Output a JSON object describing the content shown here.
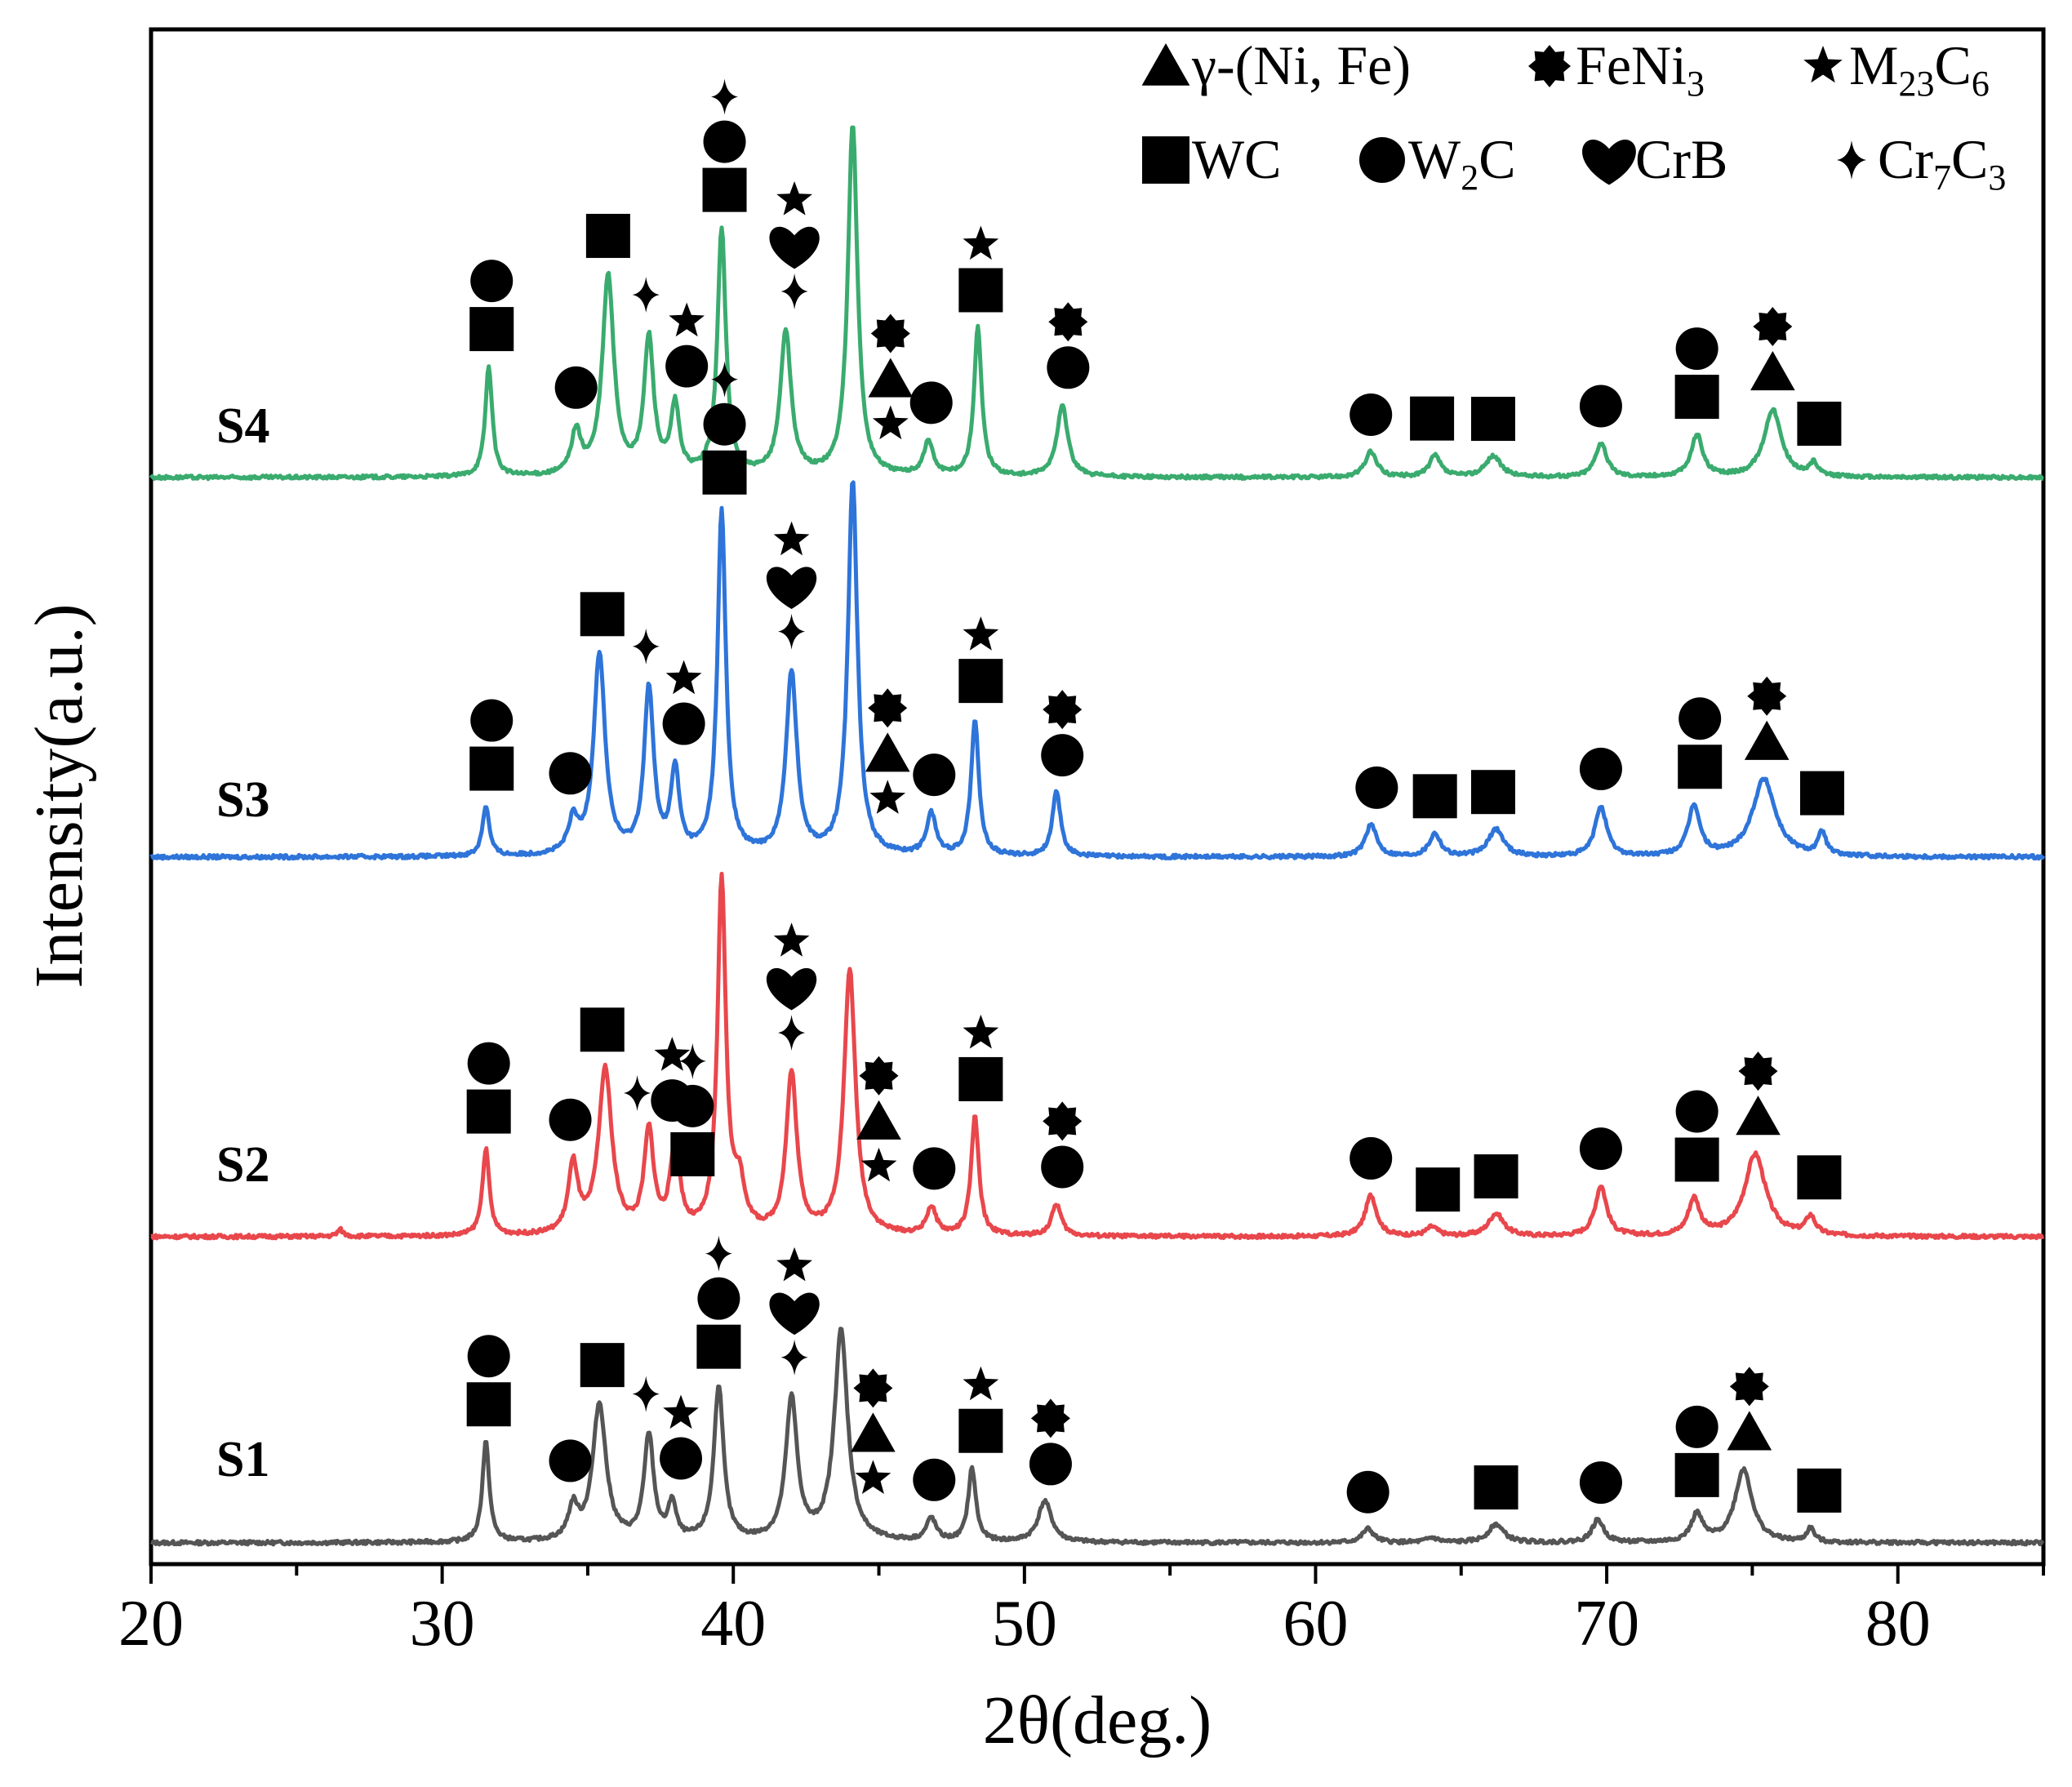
{
  "chart_data": {
    "type": "line",
    "xlabel": "2θ(deg.)",
    "ylabel": "Intensity(a.u.)",
    "xlim": [
      20,
      85
    ],
    "x_ticks": [
      "20",
      "30",
      "40",
      "50",
      "60",
      "70",
      "80"
    ],
    "y_ticks_shown": false,
    "legend_position": "top-right",
    "legend": [
      {
        "symbol": "triangle",
        "text": "γ-(Ni, Fe)"
      },
      {
        "symbol": "starburst",
        "text": "FeNi",
        "sub": "3"
      },
      {
        "symbol": "star",
        "text": "M",
        "sub": "23",
        "text2": "C",
        "sub2": "6"
      },
      {
        "symbol": "square",
        "text": "WC"
      },
      {
        "symbol": "circle",
        "text": "W",
        "sub": "2",
        "text2": "C"
      },
      {
        "symbol": "heart",
        "text": "CrB"
      },
      {
        "symbol": "cross",
        "text": "Cr",
        "sub": "7",
        "text2": "C",
        "sub2": "3"
      }
    ],
    "series": [
      {
        "name": "S1",
        "color": "#555555",
        "baseline": 0,
        "peaks": [
          {
            "x": 31.5,
            "h": 0.22,
            "w": 0.18
          },
          {
            "x": 34.5,
            "h": 0.07,
            "w": 0.25
          },
          {
            "x": 35.4,
            "h": 0.3,
            "w": 0.35
          },
          {
            "x": 37.1,
            "h": 0.23,
            "w": 0.25
          },
          {
            "x": 37.9,
            "h": 0.08,
            "w": 0.2
          },
          {
            "x": 39.5,
            "h": 0.34,
            "w": 0.25
          },
          {
            "x": 42.0,
            "h": 0.31,
            "w": 0.3
          },
          {
            "x": 43.7,
            "h": 0.46,
            "w": 0.35
          },
          {
            "x": 46.8,
            "h": 0.05,
            "w": 0.25
          },
          {
            "x": 48.2,
            "h": 0.16,
            "w": 0.2
          },
          {
            "x": 50.7,
            "h": 0.09,
            "w": 0.35
          },
          {
            "x": 61.8,
            "h": 0.03,
            "w": 0.3
          },
          {
            "x": 64.0,
            "h": 0.01,
            "w": 0.3
          },
          {
            "x": 66.2,
            "h": 0.04,
            "w": 0.4
          },
          {
            "x": 69.7,
            "h": 0.05,
            "w": 0.3
          },
          {
            "x": 73.1,
            "h": 0.06,
            "w": 0.3
          },
          {
            "x": 74.7,
            "h": 0.16,
            "w": 0.45
          },
          {
            "x": 77.0,
            "h": 0.03,
            "w": 0.2
          }
        ]
      },
      {
        "name": "S2",
        "color": "#e8474c",
        "baseline": 0,
        "peaks": [
          {
            "x": 31.5,
            "h": 0.19,
            "w": 0.18
          },
          {
            "x": 34.5,
            "h": 0.15,
            "w": 0.25
          },
          {
            "x": 35.6,
            "h": 0.36,
            "w": 0.35
          },
          {
            "x": 37.1,
            "h": 0.22,
            "w": 0.25
          },
          {
            "x": 38.0,
            "h": 0.19,
            "w": 0.25
          },
          {
            "x": 39.6,
            "h": 0.77,
            "w": 0.22
          },
          {
            "x": 40.2,
            "h": 0.1,
            "w": 0.3
          },
          {
            "x": 42.0,
            "h": 0.35,
            "w": 0.28
          },
          {
            "x": 44.0,
            "h": 0.58,
            "w": 0.3
          },
          {
            "x": 46.8,
            "h": 0.06,
            "w": 0.25
          },
          {
            "x": 48.3,
            "h": 0.26,
            "w": 0.2
          },
          {
            "x": 51.1,
            "h": 0.07,
            "w": 0.25
          },
          {
            "x": 26.5,
            "h": 0.015,
            "w": 0.15
          },
          {
            "x": 61.9,
            "h": 0.09,
            "w": 0.3
          },
          {
            "x": 64.0,
            "h": 0.02,
            "w": 0.3
          },
          {
            "x": 66.2,
            "h": 0.05,
            "w": 0.4
          },
          {
            "x": 69.8,
            "h": 0.11,
            "w": 0.3
          },
          {
            "x": 73.0,
            "h": 0.08,
            "w": 0.3
          },
          {
            "x": 75.1,
            "h": 0.18,
            "w": 0.55
          },
          {
            "x": 77.0,
            "h": 0.04,
            "w": 0.25
          }
        ]
      },
      {
        "name": "S3",
        "color": "#2e74d9",
        "baseline": 0,
        "peaks": [
          {
            "x": 31.5,
            "h": 0.11,
            "w": 0.18
          },
          {
            "x": 34.5,
            "h": 0.07,
            "w": 0.25
          },
          {
            "x": 35.4,
            "h": 0.44,
            "w": 0.3
          },
          {
            "x": 37.1,
            "h": 0.36,
            "w": 0.25
          },
          {
            "x": 38.0,
            "h": 0.18,
            "w": 0.22
          },
          {
            "x": 39.6,
            "h": 0.75,
            "w": 0.22
          },
          {
            "x": 42.0,
            "h": 0.4,
            "w": 0.28
          },
          {
            "x": 44.1,
            "h": 0.82,
            "w": 0.25
          },
          {
            "x": 46.8,
            "h": 0.09,
            "w": 0.25
          },
          {
            "x": 48.3,
            "h": 0.3,
            "w": 0.2
          },
          {
            "x": 51.1,
            "h": 0.14,
            "w": 0.22
          },
          {
            "x": 61.9,
            "h": 0.07,
            "w": 0.3
          },
          {
            "x": 64.1,
            "h": 0.05,
            "w": 0.3
          },
          {
            "x": 66.2,
            "h": 0.06,
            "w": 0.4
          },
          {
            "x": 69.8,
            "h": 0.11,
            "w": 0.3
          },
          {
            "x": 73.0,
            "h": 0.11,
            "w": 0.3
          },
          {
            "x": 75.4,
            "h": 0.17,
            "w": 0.6
          },
          {
            "x": 77.4,
            "h": 0.05,
            "w": 0.2
          }
        ]
      },
      {
        "name": "S4",
        "color": "#3aab6e",
        "baseline": 0,
        "peaks": [
          {
            "x": 31.6,
            "h": 0.26,
            "w": 0.18
          },
          {
            "x": 34.6,
            "h": 0.1,
            "w": 0.25
          },
          {
            "x": 35.7,
            "h": 0.47,
            "w": 0.3
          },
          {
            "x": 37.1,
            "h": 0.32,
            "w": 0.25
          },
          {
            "x": 38.0,
            "h": 0.16,
            "w": 0.22
          },
          {
            "x": 39.6,
            "h": 0.58,
            "w": 0.22
          },
          {
            "x": 41.8,
            "h": 0.34,
            "w": 0.28
          },
          {
            "x": 44.1,
            "h": 0.83,
            "w": 0.25
          },
          {
            "x": 46.7,
            "h": 0.08,
            "w": 0.25
          },
          {
            "x": 48.4,
            "h": 0.35,
            "w": 0.2
          },
          {
            "x": 51.3,
            "h": 0.17,
            "w": 0.28
          },
          {
            "x": 61.9,
            "h": 0.06,
            "w": 0.3
          },
          {
            "x": 64.1,
            "h": 0.05,
            "w": 0.3
          },
          {
            "x": 66.1,
            "h": 0.05,
            "w": 0.4
          },
          {
            "x": 69.8,
            "h": 0.08,
            "w": 0.3
          },
          {
            "x": 73.1,
            "h": 0.1,
            "w": 0.3
          },
          {
            "x": 75.7,
            "h": 0.16,
            "w": 0.45
          },
          {
            "x": 77.1,
            "h": 0.03,
            "w": 0.2
          }
        ]
      }
    ],
    "peak_markers": [
      {
        "sample": "S1",
        "x": 31.6,
        "symbols": [
          "square",
          "circle"
        ]
      },
      {
        "sample": "S1",
        "x": 34.4,
        "symbols": [
          "circle"
        ]
      },
      {
        "sample": "S1",
        "x": 35.5,
        "symbols": [
          "square"
        ]
      },
      {
        "sample": "S1",
        "x": 37.0,
        "symbols": [
          "cross"
        ]
      },
      {
        "sample": "S1",
        "x": 38.2,
        "symbols": [
          "circle",
          "star"
        ]
      },
      {
        "sample": "S1",
        "x": 39.5,
        "symbols": [
          "square",
          "circle",
          "cross"
        ]
      },
      {
        "sample": "S1",
        "x": 42.1,
        "symbols": [
          "cross",
          "heart",
          "star"
        ]
      },
      {
        "sample": "S1",
        "x": 44.8,
        "symbols": [
          "star",
          "triangle",
          "starburst"
        ]
      },
      {
        "sample": "S1",
        "x": 46.9,
        "symbols": [
          "circle"
        ]
      },
      {
        "sample": "S1",
        "x": 48.5,
        "symbols": [
          "square",
          "star"
        ]
      },
      {
        "sample": "S1",
        "x": 50.9,
        "symbols": [
          "circle",
          "starburst"
        ]
      },
      {
        "sample": "S1",
        "x": 61.8,
        "symbols": [
          "circle"
        ]
      },
      {
        "sample": "S1",
        "x": 66.2,
        "symbols": [
          "square"
        ]
      },
      {
        "sample": "S1",
        "x": 69.8,
        "symbols": [
          "circle"
        ]
      },
      {
        "sample": "S1",
        "x": 73.1,
        "symbols": [
          "square",
          "circle"
        ]
      },
      {
        "sample": "S1",
        "x": 74.9,
        "symbols": [
          "triangle",
          "starburst"
        ]
      },
      {
        "sample": "S1",
        "x": 77.3,
        "symbols": [
          "square"
        ]
      },
      {
        "sample": "S2",
        "x": 31.6,
        "symbols": [
          "square",
          "circle"
        ]
      },
      {
        "sample": "S2",
        "x": 34.4,
        "symbols": [
          "circle"
        ]
      },
      {
        "sample": "S2",
        "x": 35.5,
        "symbols": [
          "square"
        ]
      },
      {
        "sample": "S2",
        "x": 36.7,
        "symbols": [
          "cross"
        ]
      },
      {
        "sample": "S2",
        "x": 37.9,
        "symbols": [
          "circle",
          "star"
        ]
      },
      {
        "sample": "S2",
        "x": 38.6,
        "symbols": [
          "square",
          "circle",
          "cross"
        ]
      },
      {
        "sample": "S2",
        "x": 42.0,
        "symbols": [
          "cross",
          "heart",
          "star"
        ]
      },
      {
        "sample": "S2",
        "x": 45.0,
        "symbols": [
          "star",
          "triangle",
          "starburst"
        ]
      },
      {
        "sample": "S2",
        "x": 46.9,
        "symbols": [
          "circle"
        ]
      },
      {
        "sample": "S2",
        "x": 48.5,
        "symbols": [
          "square",
          "star"
        ]
      },
      {
        "sample": "S2",
        "x": 51.3,
        "symbols": [
          "circle",
          "starburst"
        ]
      },
      {
        "sample": "S2",
        "x": 61.9,
        "symbols": [
          "circle"
        ]
      },
      {
        "sample": "S2",
        "x": 64.2,
        "symbols": [
          "square"
        ]
      },
      {
        "sample": "S2",
        "x": 66.2,
        "symbols": [
          "square"
        ]
      },
      {
        "sample": "S2",
        "x": 69.8,
        "symbols": [
          "circle"
        ]
      },
      {
        "sample": "S2",
        "x": 73.1,
        "symbols": [
          "square",
          "circle"
        ]
      },
      {
        "sample": "S2",
        "x": 75.2,
        "symbols": [
          "triangle",
          "starburst"
        ]
      },
      {
        "sample": "S2",
        "x": 77.3,
        "symbols": [
          "square"
        ]
      },
      {
        "sample": "S3",
        "x": 31.7,
        "symbols": [
          "square",
          "circle"
        ]
      },
      {
        "sample": "S3",
        "x": 34.4,
        "symbols": [
          "circle"
        ]
      },
      {
        "sample": "S3",
        "x": 35.5,
        "symbols": [
          "square"
        ]
      },
      {
        "sample": "S3",
        "x": 37.0,
        "symbols": [
          "cross"
        ]
      },
      {
        "sample": "S3",
        "x": 38.3,
        "symbols": [
          "circle",
          "star"
        ]
      },
      {
        "sample": "S3",
        "x": 39.7,
        "symbols": [
          "square",
          "circle",
          "cross"
        ]
      },
      {
        "sample": "S3",
        "x": 42.0,
        "symbols": [
          "cross",
          "heart",
          "star"
        ]
      },
      {
        "sample": "S3",
        "x": 45.3,
        "symbols": [
          "star",
          "triangle",
          "starburst"
        ]
      },
      {
        "sample": "S3",
        "x": 46.9,
        "symbols": [
          "circle"
        ]
      },
      {
        "sample": "S3",
        "x": 48.5,
        "symbols": [
          "square",
          "star"
        ]
      },
      {
        "sample": "S3",
        "x": 51.3,
        "symbols": [
          "circle",
          "starburst"
        ]
      },
      {
        "sample": "S3",
        "x": 62.1,
        "symbols": [
          "circle"
        ]
      },
      {
        "sample": "S3",
        "x": 64.1,
        "symbols": [
          "square"
        ]
      },
      {
        "sample": "S3",
        "x": 66.1,
        "symbols": [
          "square"
        ]
      },
      {
        "sample": "S3",
        "x": 69.8,
        "symbols": [
          "circle"
        ]
      },
      {
        "sample": "S3",
        "x": 73.2,
        "symbols": [
          "square",
          "circle"
        ]
      },
      {
        "sample": "S3",
        "x": 75.5,
        "symbols": [
          "triangle",
          "starburst"
        ]
      },
      {
        "sample": "S3",
        "x": 77.4,
        "symbols": [
          "square"
        ]
      },
      {
        "sample": "S4",
        "x": 31.7,
        "symbols": [
          "square",
          "circle"
        ]
      },
      {
        "sample": "S4",
        "x": 34.6,
        "symbols": [
          "circle"
        ]
      },
      {
        "sample": "S4",
        "x": 35.7,
        "symbols": [
          "square"
        ]
      },
      {
        "sample": "S4",
        "x": 37.0,
        "symbols": [
          "cross"
        ]
      },
      {
        "sample": "S4",
        "x": 38.4,
        "symbols": [
          "circle",
          "star"
        ]
      },
      {
        "sample": "S4",
        "x": 39.7,
        "symbols": [
          "square",
          "circle",
          "cross"
        ]
      },
      {
        "sample": "S4",
        "x": 42.1,
        "symbols": [
          "cross",
          "heart",
          "star"
        ]
      },
      {
        "sample": "S4",
        "x": 45.4,
        "symbols": [
          "star",
          "triangle",
          "starburst"
        ]
      },
      {
        "sample": "S4",
        "x": 46.8,
        "symbols": [
          "circle"
        ]
      },
      {
        "sample": "S4",
        "x": 48.5,
        "symbols": [
          "square",
          "star"
        ]
      },
      {
        "sample": "S4",
        "x": 51.5,
        "symbols": [
          "circle",
          "starburst"
        ]
      },
      {
        "sample": "S4",
        "x": 61.9,
        "symbols": [
          "circle"
        ]
      },
      {
        "sample": "S4",
        "x": 64.0,
        "symbols": [
          "square"
        ]
      },
      {
        "sample": "S4",
        "x": 66.1,
        "symbols": [
          "square"
        ]
      },
      {
        "sample": "S4",
        "x": 69.8,
        "symbols": [
          "circle"
        ]
      },
      {
        "sample": "S4",
        "x": 73.1,
        "symbols": [
          "square",
          "circle"
        ]
      },
      {
        "sample": "S4",
        "x": 75.7,
        "symbols": [
          "triangle",
          "starburst"
        ]
      },
      {
        "sample": "S4",
        "x": 77.3,
        "symbols": [
          "square"
        ]
      }
    ]
  }
}
